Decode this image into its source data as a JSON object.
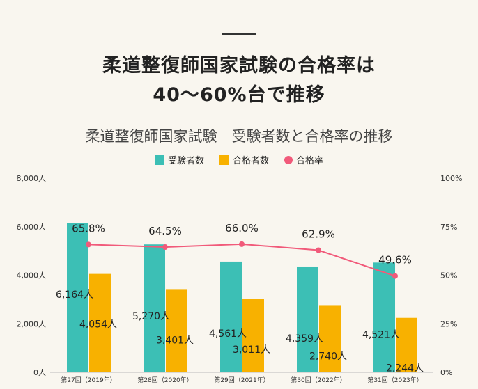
{
  "header": {
    "title_line1": "柔道整復師国家試験の合格率は",
    "title_line2": "40～60%台で推移"
  },
  "chart_data": {
    "type": "bar",
    "title": "柔道整復師国家試験　受験者数と合格率の推移",
    "categories": [
      "第27回（2019年）",
      "第28回（2020年）",
      "第29回（2021年）",
      "第30回（2022年）",
      "第31回（2023年）"
    ],
    "series": [
      {
        "name": "受験者数",
        "type": "bar",
        "axis": "left",
        "color": "#3cbfb5",
        "values": [
          6164,
          5270,
          4561,
          4359,
          4521
        ],
        "labels": [
          "6,164人",
          "5,270人",
          "4,561人",
          "4,359人",
          "4,521人"
        ]
      },
      {
        "name": "合格者数",
        "type": "bar",
        "axis": "left",
        "color": "#f8b100",
        "values": [
          4054,
          3401,
          3011,
          2740,
          2244
        ],
        "labels": [
          "4,054人",
          "3,401人",
          "3,011人",
          "2,740人",
          "2,244人"
        ]
      },
      {
        "name": "合格率",
        "type": "line",
        "axis": "right",
        "color": "#f15a7a",
        "values": [
          65.8,
          64.5,
          66.0,
          62.9,
          49.6
        ],
        "labels": [
          "65.8%",
          "64.5%",
          "66.0%",
          "62.9%",
          "49.6%"
        ]
      }
    ],
    "y_left": {
      "range": [
        0,
        8000
      ],
      "ticks": [
        "0人",
        "2,000人",
        "4,000人",
        "6,000人",
        "8,000人"
      ]
    },
    "y_right": {
      "range": [
        0,
        100
      ],
      "ticks": [
        "0%",
        "25%",
        "50%",
        "75%",
        "100%"
      ]
    },
    "legend_placement": "top-center",
    "grid": false
  }
}
